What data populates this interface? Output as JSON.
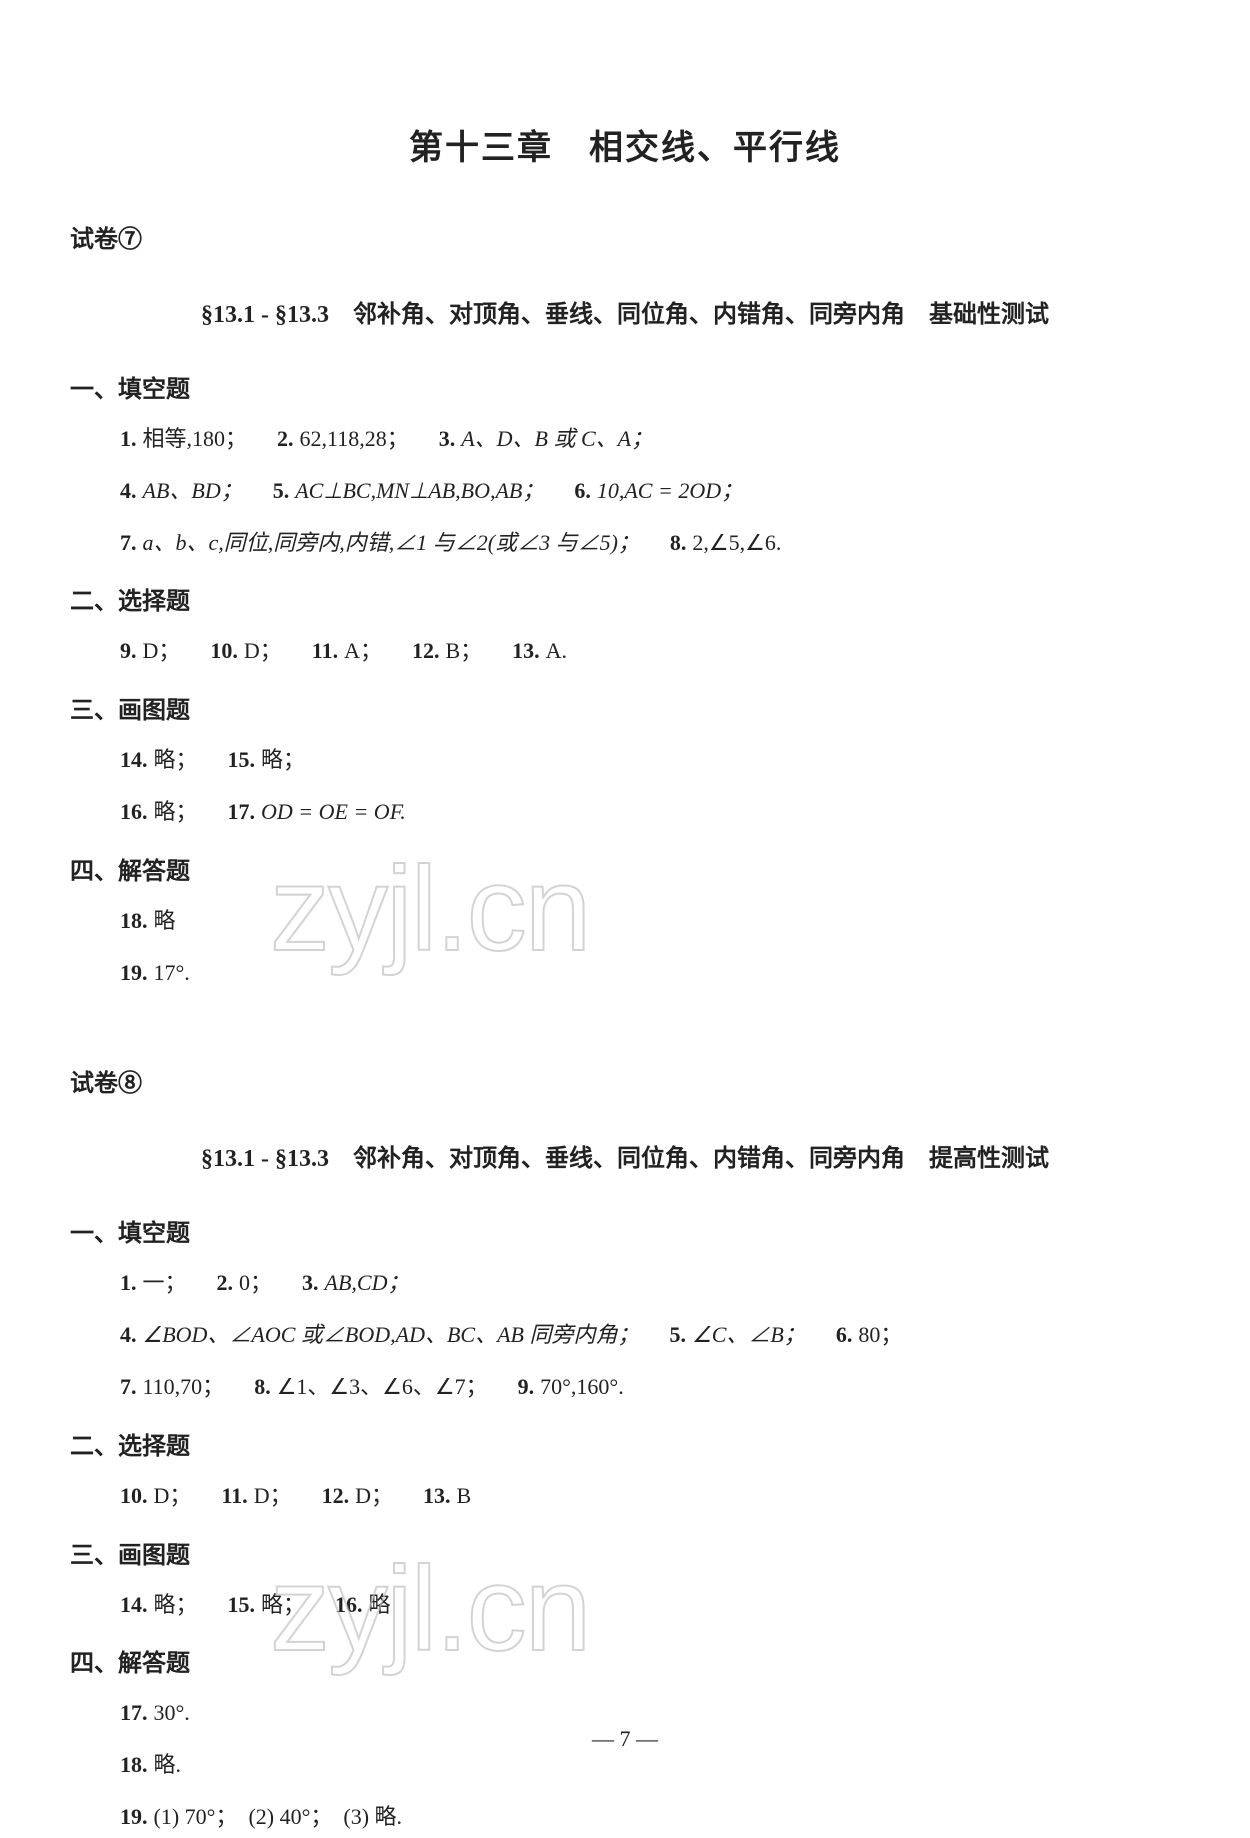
{
  "chapter_title": "第十三章　相交线、平行线",
  "page_number": "— 7 —",
  "watermark": "zyjl.cn",
  "papers": [
    {
      "label": "试卷⑦",
      "section_title": "§13.1 - §13.3　邻补角、对顶角、垂线、同位角、内错角、同旁内角　基础性测试",
      "groups": [
        {
          "heading": "一、填空题",
          "lines": [
            [
              {
                "q": "1.",
                "a": "相等,180；"
              },
              {
                "q": "2.",
                "a": "62,118,28；"
              },
              {
                "q": "3.",
                "a": "A、D、B 或 C、A；",
                "italic": true
              }
            ],
            [
              {
                "q": "4.",
                "a": "AB、BD；",
                "italic": true
              },
              {
                "q": "5.",
                "a": "AC⊥BC,MN⊥AB,BO,AB；",
                "italic": true
              },
              {
                "q": "6.",
                "a": "10,AC = 2OD；",
                "italic": true
              }
            ],
            [
              {
                "q": "7.",
                "a": "a、b、c,同位,同旁内,内错,∠1 与∠2(或∠3 与∠5)；",
                "italic": true
              },
              {
                "q": "8.",
                "a": "2,∠5,∠6."
              }
            ]
          ]
        },
        {
          "heading": "二、选择题",
          "lines": [
            [
              {
                "q": "9.",
                "a": "D；"
              },
              {
                "q": "10.",
                "a": "D；"
              },
              {
                "q": "11.",
                "a": "A；"
              },
              {
                "q": "12.",
                "a": "B；"
              },
              {
                "q": "13.",
                "a": "A."
              }
            ]
          ]
        },
        {
          "heading": "三、画图题",
          "lines": [
            [
              {
                "q": "14.",
                "a": "略；"
              },
              {
                "q": "15.",
                "a": "略；"
              }
            ],
            [
              {
                "q": "16.",
                "a": "略；"
              },
              {
                "q": "17.",
                "a": "OD = OE = OF.",
                "italic": true
              }
            ]
          ]
        },
        {
          "heading": "四、解答题",
          "lines": [
            [
              {
                "q": "18.",
                "a": "略"
              }
            ],
            [
              {
                "q": "19.",
                "a": "17°."
              }
            ]
          ]
        }
      ]
    },
    {
      "label": "试卷⑧",
      "section_title": "§13.1 - §13.3　邻补角、对顶角、垂线、同位角、内错角、同旁内角　提高性测试",
      "groups": [
        {
          "heading": "一、填空题",
          "lines": [
            [
              {
                "q": "1.",
                "a": "一；"
              },
              {
                "q": "2.",
                "a": "0；"
              },
              {
                "q": "3.",
                "a": "AB,CD；",
                "italic": true
              }
            ],
            [
              {
                "q": "4.",
                "a": "∠BOD、∠AOC 或∠BOD,AD、BC、AB 同旁内角；",
                "italic": true
              },
              {
                "q": "5.",
                "a": "∠C、∠B；",
                "italic": true
              },
              {
                "q": "6.",
                "a": "80；"
              }
            ],
            [
              {
                "q": "7.",
                "a": "110,70；"
              },
              {
                "q": "8.",
                "a": "∠1、∠3、∠6、∠7；"
              },
              {
                "q": "9.",
                "a": "70°,160°."
              }
            ]
          ]
        },
        {
          "heading": "二、选择题",
          "lines": [
            [
              {
                "q": "10.",
                "a": "D；"
              },
              {
                "q": "11.",
                "a": "D；"
              },
              {
                "q": "12.",
                "a": "D；"
              },
              {
                "q": "13.",
                "a": "B"
              }
            ]
          ]
        },
        {
          "heading": "三、画图题",
          "lines": [
            [
              {
                "q": "14.",
                "a": "略；"
              },
              {
                "q": "15.",
                "a": "略；"
              },
              {
                "q": "16.",
                "a": "略"
              }
            ]
          ]
        },
        {
          "heading": "四、解答题",
          "lines": [
            [
              {
                "q": "17.",
                "a": "30°."
              }
            ],
            [
              {
                "q": "18.",
                "a": "略."
              }
            ],
            [
              {
                "q": "19.",
                "a": "(1) 70°；　(2) 40°；　(3) 略."
              }
            ]
          ]
        }
      ]
    }
  ]
}
